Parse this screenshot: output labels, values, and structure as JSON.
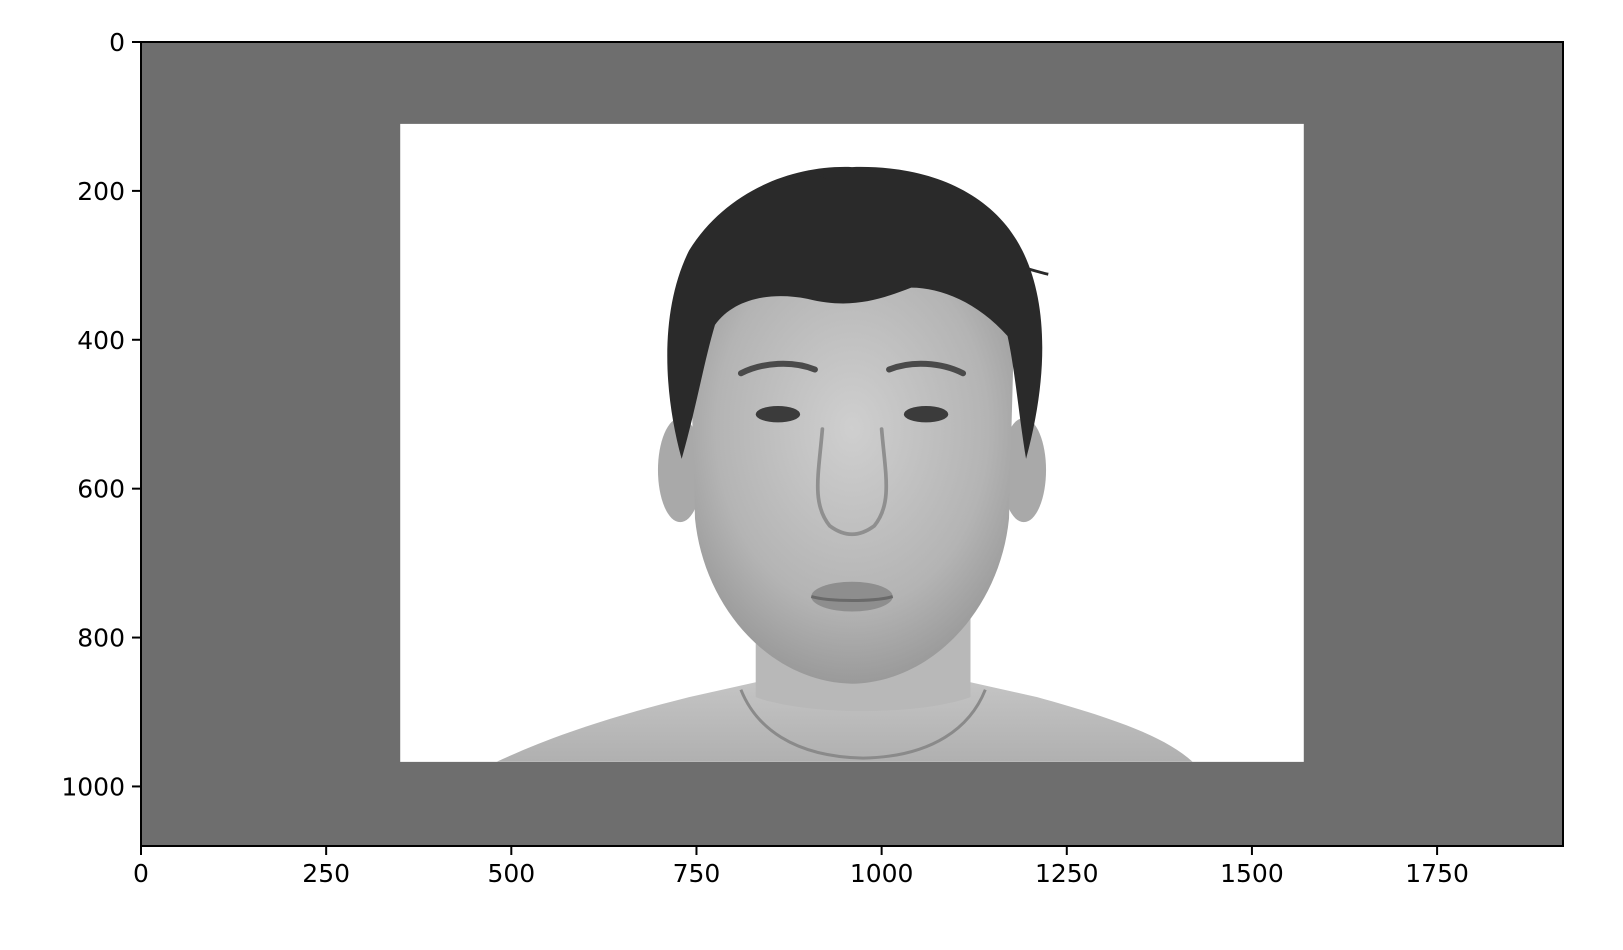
{
  "chart_data": {
    "type": "image",
    "title": "",
    "xlabel": "",
    "ylabel": "",
    "xlim": [
      0,
      1920
    ],
    "ylim": [
      1080,
      0
    ],
    "x_ticks": [
      0,
      250,
      500,
      750,
      1000,
      1250,
      1500,
      1750
    ],
    "x_tick_labels": [
      "0",
      "250",
      "500",
      "750",
      "1000",
      "1250",
      "1500",
      "1750"
    ],
    "y_ticks": [
      0,
      200,
      400,
      600,
      800,
      1000
    ],
    "y_tick_labels": [
      "0",
      "200",
      "400",
      "600",
      "800",
      "1000"
    ],
    "grid": false,
    "background_color": "#6e6e6e",
    "photo": {
      "x_range": [
        350,
        1570
      ],
      "y_range": [
        110,
        967
      ],
      "background_color": "#ffffff",
      "subject": "grayscale-portrait-icon"
    }
  }
}
